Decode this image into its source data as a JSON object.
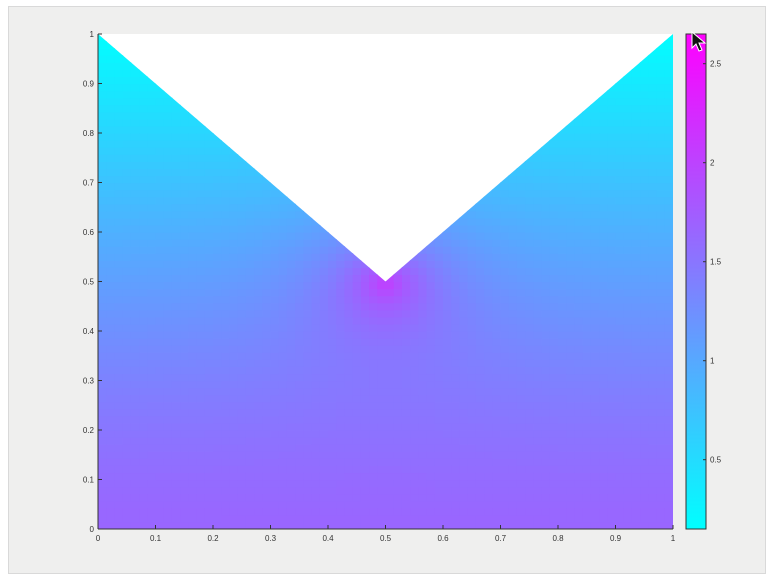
{
  "chart_data": {
    "type": "heatmap",
    "title": "",
    "xlabel": "",
    "ylabel": "",
    "xlim": [
      0,
      1
    ],
    "ylim": [
      0,
      1
    ],
    "x_ticks": [
      0,
      0.1,
      0.2,
      0.3,
      0.4,
      0.5,
      0.6,
      0.7,
      0.8,
      0.9,
      1
    ],
    "y_ticks": [
      0,
      0.1,
      0.2,
      0.3,
      0.4,
      0.5,
      0.6,
      0.7,
      0.8,
      0.9,
      1
    ],
    "x_tick_labels": [
      "0",
      "0.1",
      "0.2",
      "0.3",
      "0.4",
      "0.5",
      "0.6",
      "0.7",
      "0.8",
      "0.9",
      "1"
    ],
    "y_tick_labels": [
      "0",
      "0.1",
      "0.2",
      "0.3",
      "0.4",
      "0.5",
      "0.6",
      "0.7",
      "0.8",
      "0.9",
      "1"
    ],
    "domain_polygon": [
      [
        0,
        0
      ],
      [
        1,
        0
      ],
      [
        1,
        1
      ],
      [
        0.5,
        0.5
      ],
      [
        0,
        1
      ]
    ],
    "field": {
      "description": "",
      "singular_point": [
        0.5,
        0.5
      ],
      "value_near_corner": 2.65,
      "value_at_top_edges": 0.15,
      "value_at_bottom": 1.65
    },
    "colormap": {
      "name": "cool",
      "low": "#00ffff",
      "high": "#ff00ff"
    },
    "colorbar": {
      "range": [
        0.15,
        2.65
      ],
      "ticks": [
        0.5,
        1,
        1.5,
        2,
        2.5
      ],
      "tick_labels": [
        "0.5",
        "1",
        "1.5",
        "2",
        "2.5"
      ],
      "location": "right"
    },
    "grid": false,
    "legend": "none"
  }
}
